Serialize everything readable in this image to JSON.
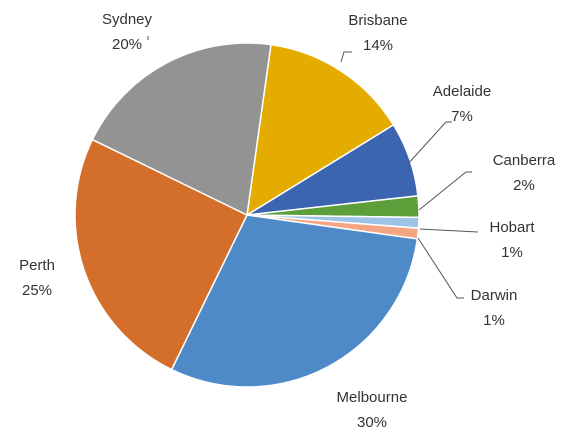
{
  "chart_data": {
    "type": "pie",
    "categories": [
      "Brisbane",
      "Adelaide",
      "Canberra",
      "Hobart",
      "Darwin",
      "Melbourne",
      "Perth",
      "Sydney"
    ],
    "values": [
      14,
      7,
      2,
      1,
      1,
      30,
      25,
      20
    ],
    "value_labels": [
      "14%",
      "7%",
      "2%",
      "1%",
      "1%",
      "30%",
      "25%",
      "20%"
    ],
    "colors": [
      "#e5ac00",
      "#3b64b1",
      "#5c9e3a",
      "#9dc3e6",
      "#f4a582",
      "#4e8ac8",
      "#d36f2b",
      "#939393"
    ]
  }
}
